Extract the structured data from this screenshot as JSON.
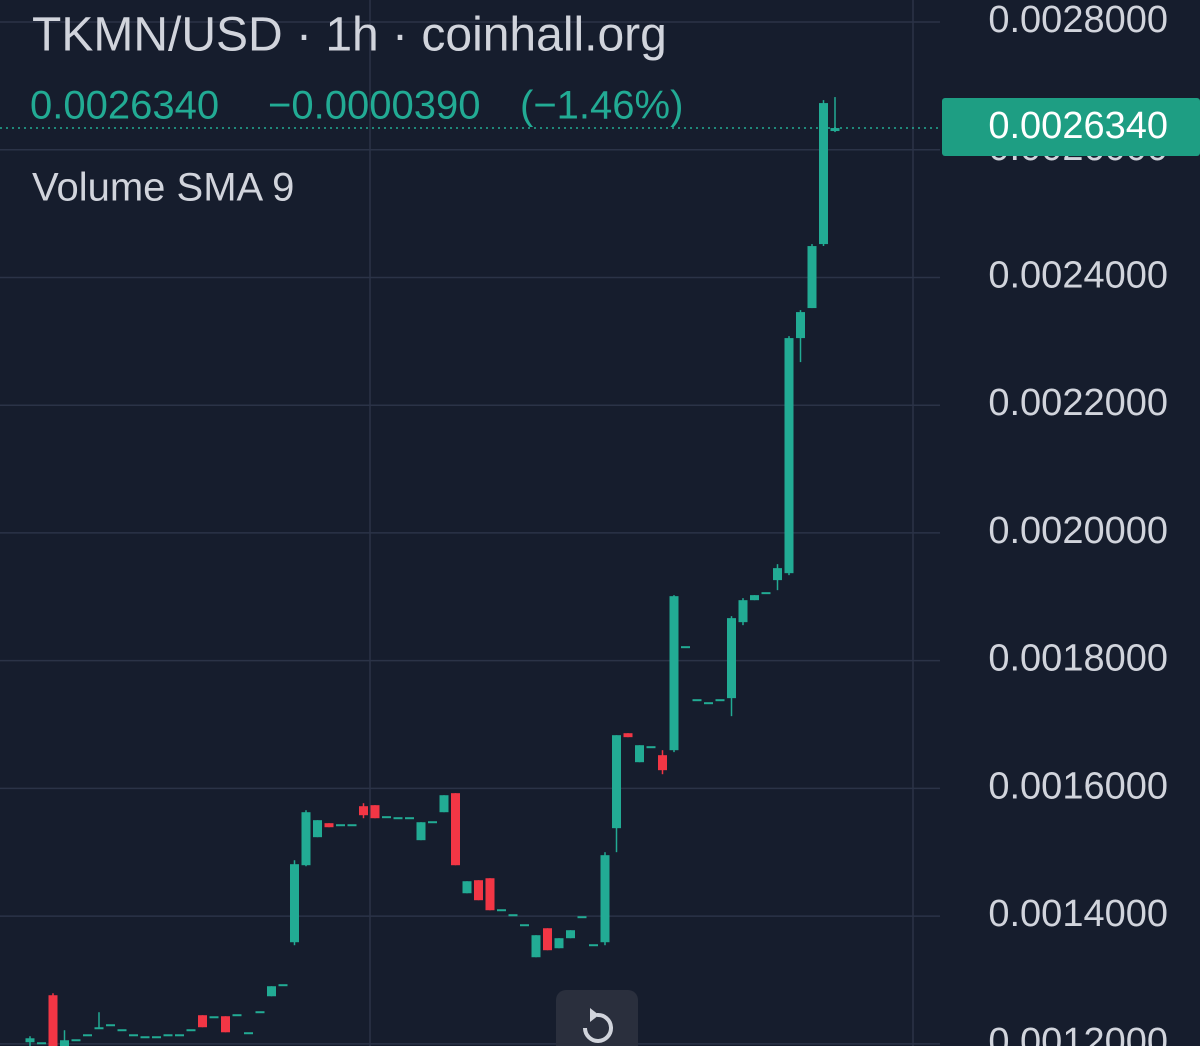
{
  "chart_data": {
    "type": "candlestick",
    "title": "TKMN/USD · 1h · coinhall.org",
    "last_price": {
      "value": 0.002634,
      "label": "0.0026340"
    },
    "change": {
      "value": -3.9e-05,
      "label": "−0.0000390"
    },
    "change_pct": {
      "value": -1.46,
      "label": "(−1.46%)"
    },
    "indicator": "Volume SMA 9",
    "up_color": "#22ab94",
    "down_color": "#f23645",
    "grid": true,
    "ylim": [
      0.0011966,
      0.0028345
    ],
    "yticks": [
      {
        "value": 0.0012,
        "label": "0.0012000"
      },
      {
        "value": 0.0014,
        "label": "0.0014000"
      },
      {
        "value": 0.0016,
        "label": "0.0016000"
      },
      {
        "value": 0.0018,
        "label": "0.0018000"
      },
      {
        "value": 0.002,
        "label": "0.0020000"
      },
      {
        "value": 0.0022,
        "label": "0.0022000"
      },
      {
        "value": 0.0024,
        "label": "0.0024000"
      },
      {
        "value": 0.0026,
        "label": "0.0026000"
      },
      {
        "value": 0.0028,
        "label": "0.0028000"
      }
    ],
    "open": [
      0.0012025,
      0.0012009,
      0.0012761,
      0.0011962,
      0.0012056,
      0.0012134,
      0.0012244,
      0.0012291,
      0.0012213,
      0.0012134,
      0.0012103,
      0.0012103,
      0.0012134,
      0.0012134,
      0.0012213,
      0.0012448,
      0.0012416,
      0.0012432,
      0.0012448,
      0.0012166,
      0.0012495,
      0.0012745,
      0.0012918,
      0.0013591,
      0.0014797,
      0.0015236,
      0.0015455,
      0.0015423,
      0.0015423,
      0.0015721,
      0.0015737,
      0.0015549,
      0.0015533,
      0.0015533,
      0.0015189,
      0.001547,
      0.0015627,
      0.0015925,
      0.0014358,
      0.0014562,
      0.0014593,
      0.0014092,
      0.0014014,
      0.0013857,
      0.0013356,
      0.001381,
      0.0013497,
      0.0013654,
      0.0013983,
      0.0013544,
      0.0013591,
      0.0015377,
      0.0016864,
      0.001641,
      0.0016645,
      0.001652,
      0.0016598,
      0.0018211,
      0.0017381,
      0.0017334,
      0.0017381,
      0.0017413,
      0.0018603,
      0.0018947,
      0.0019057,
      0.0019261,
      0.001937,
      0.0023051,
      0.0023521,
      0.0024523,
      0.0026293
    ],
    "high": [
      0.0012119,
      0.0012009,
      0.0012792,
      0.0012213,
      0.0012056,
      0.0012134,
      0.0012495,
      0.0012291,
      0.0012213,
      0.0012134,
      0.0012103,
      0.0012103,
      0.0012134,
      0.0012134,
      0.0012213,
      0.0012448,
      0.0012416,
      0.0012432,
      0.0012448,
      0.0012166,
      0.0012495,
      0.0012902,
      0.0012918,
      0.0014875,
      0.0015658,
      0.0015502,
      0.0015455,
      0.0015423,
      0.0015423,
      0.0015768,
      0.0015737,
      0.0015549,
      0.0015533,
      0.0015533,
      0.001547,
      0.001547,
      0.0015893,
      0.0015925,
      0.0014546,
      0.0014562,
      0.0014593,
      0.0014092,
      0.0014014,
      0.0013857,
      0.0013701,
      0.001381,
      0.0013654,
      0.0013779,
      0.0013983,
      0.0013544,
      0.0015001,
      0.0016833,
      0.0016864,
      0.0016676,
      0.0016645,
      0.0016598,
      0.0019026,
      0.0018211,
      0.0017381,
      0.0017334,
      0.0017381,
      0.0018697,
      0.0018979,
      0.0019026,
      0.0019057,
      0.0019511,
      0.0023082,
      0.0023489,
      0.0024523,
      0.0026778,
      0.0026825
    ],
    "low": [
      0.0011962,
      0.0012009,
      0.0011962,
      0.0011962,
      0.0012056,
      0.0012134,
      0.0012244,
      0.0012291,
      0.0012213,
      0.0012134,
      0.0012103,
      0.0012103,
      0.0012134,
      0.0012134,
      0.0012213,
      0.001226,
      0.0012416,
      0.0012181,
      0.0012448,
      0.0012166,
      0.0012495,
      0.0012745,
      0.0012918,
      0.0013544,
      0.0014781,
      0.0015236,
      0.0015392,
      0.0015423,
      0.0015423,
      0.0015533,
      0.0015533,
      0.0015549,
      0.0015533,
      0.0015533,
      0.0015189,
      0.001547,
      0.0015627,
      0.0014797,
      0.0014358,
      0.0014249,
      0.0014092,
      0.0014092,
      0.0014014,
      0.0013857,
      0.0013356,
      0.0013466,
      0.0013497,
      0.0013654,
      0.0013983,
      0.0013544,
      0.0013544,
      0.0015001,
      0.0016802,
      0.001641,
      0.0016645,
      0.0016222,
      0.0016567,
      0.0018211,
      0.0017381,
      0.0017334,
      0.0017381,
      0.0017131,
      0.0018556,
      0.0018947,
      0.0019057,
      0.0019104,
      0.0019339,
      0.0022675,
      0.0023521,
      0.0024492,
      0.0026277
    ],
    "close": [
      0.0012087,
      0.0012009,
      0.0011962,
      0.0012056,
      0.0012056,
      0.0012134,
      0.0012244,
      0.0012291,
      0.0012213,
      0.0012134,
      0.0012103,
      0.0012103,
      0.0012134,
      0.0012134,
      0.0012213,
      0.001226,
      0.0012416,
      0.0012181,
      0.0012448,
      0.0012166,
      0.0012495,
      0.0012902,
      0.0012918,
      0.0014813,
      0.0015627,
      0.0015502,
      0.0015392,
      0.0015423,
      0.0015423,
      0.001558,
      0.0015533,
      0.0015549,
      0.0015533,
      0.0015533,
      0.001547,
      0.001547,
      0.0015893,
      0.0014797,
      0.0014546,
      0.0014249,
      0.0014092,
      0.0014092,
      0.0014014,
      0.0013857,
      0.0013701,
      0.0013466,
      0.0013654,
      0.0013779,
      0.0013983,
      0.0013544,
      0.0014954,
      0.0016833,
      0.0016802,
      0.0016676,
      0.0016645,
      0.0016285,
      0.001901,
      0.0018211,
      0.0017381,
      0.0017334,
      0.0017381,
      0.0018666,
      0.0018947,
      0.0019026,
      0.0019057,
      0.0019449,
      0.0023051,
      0.0023458,
      0.0024492,
      0.0026731,
      0.002634
    ]
  }
}
